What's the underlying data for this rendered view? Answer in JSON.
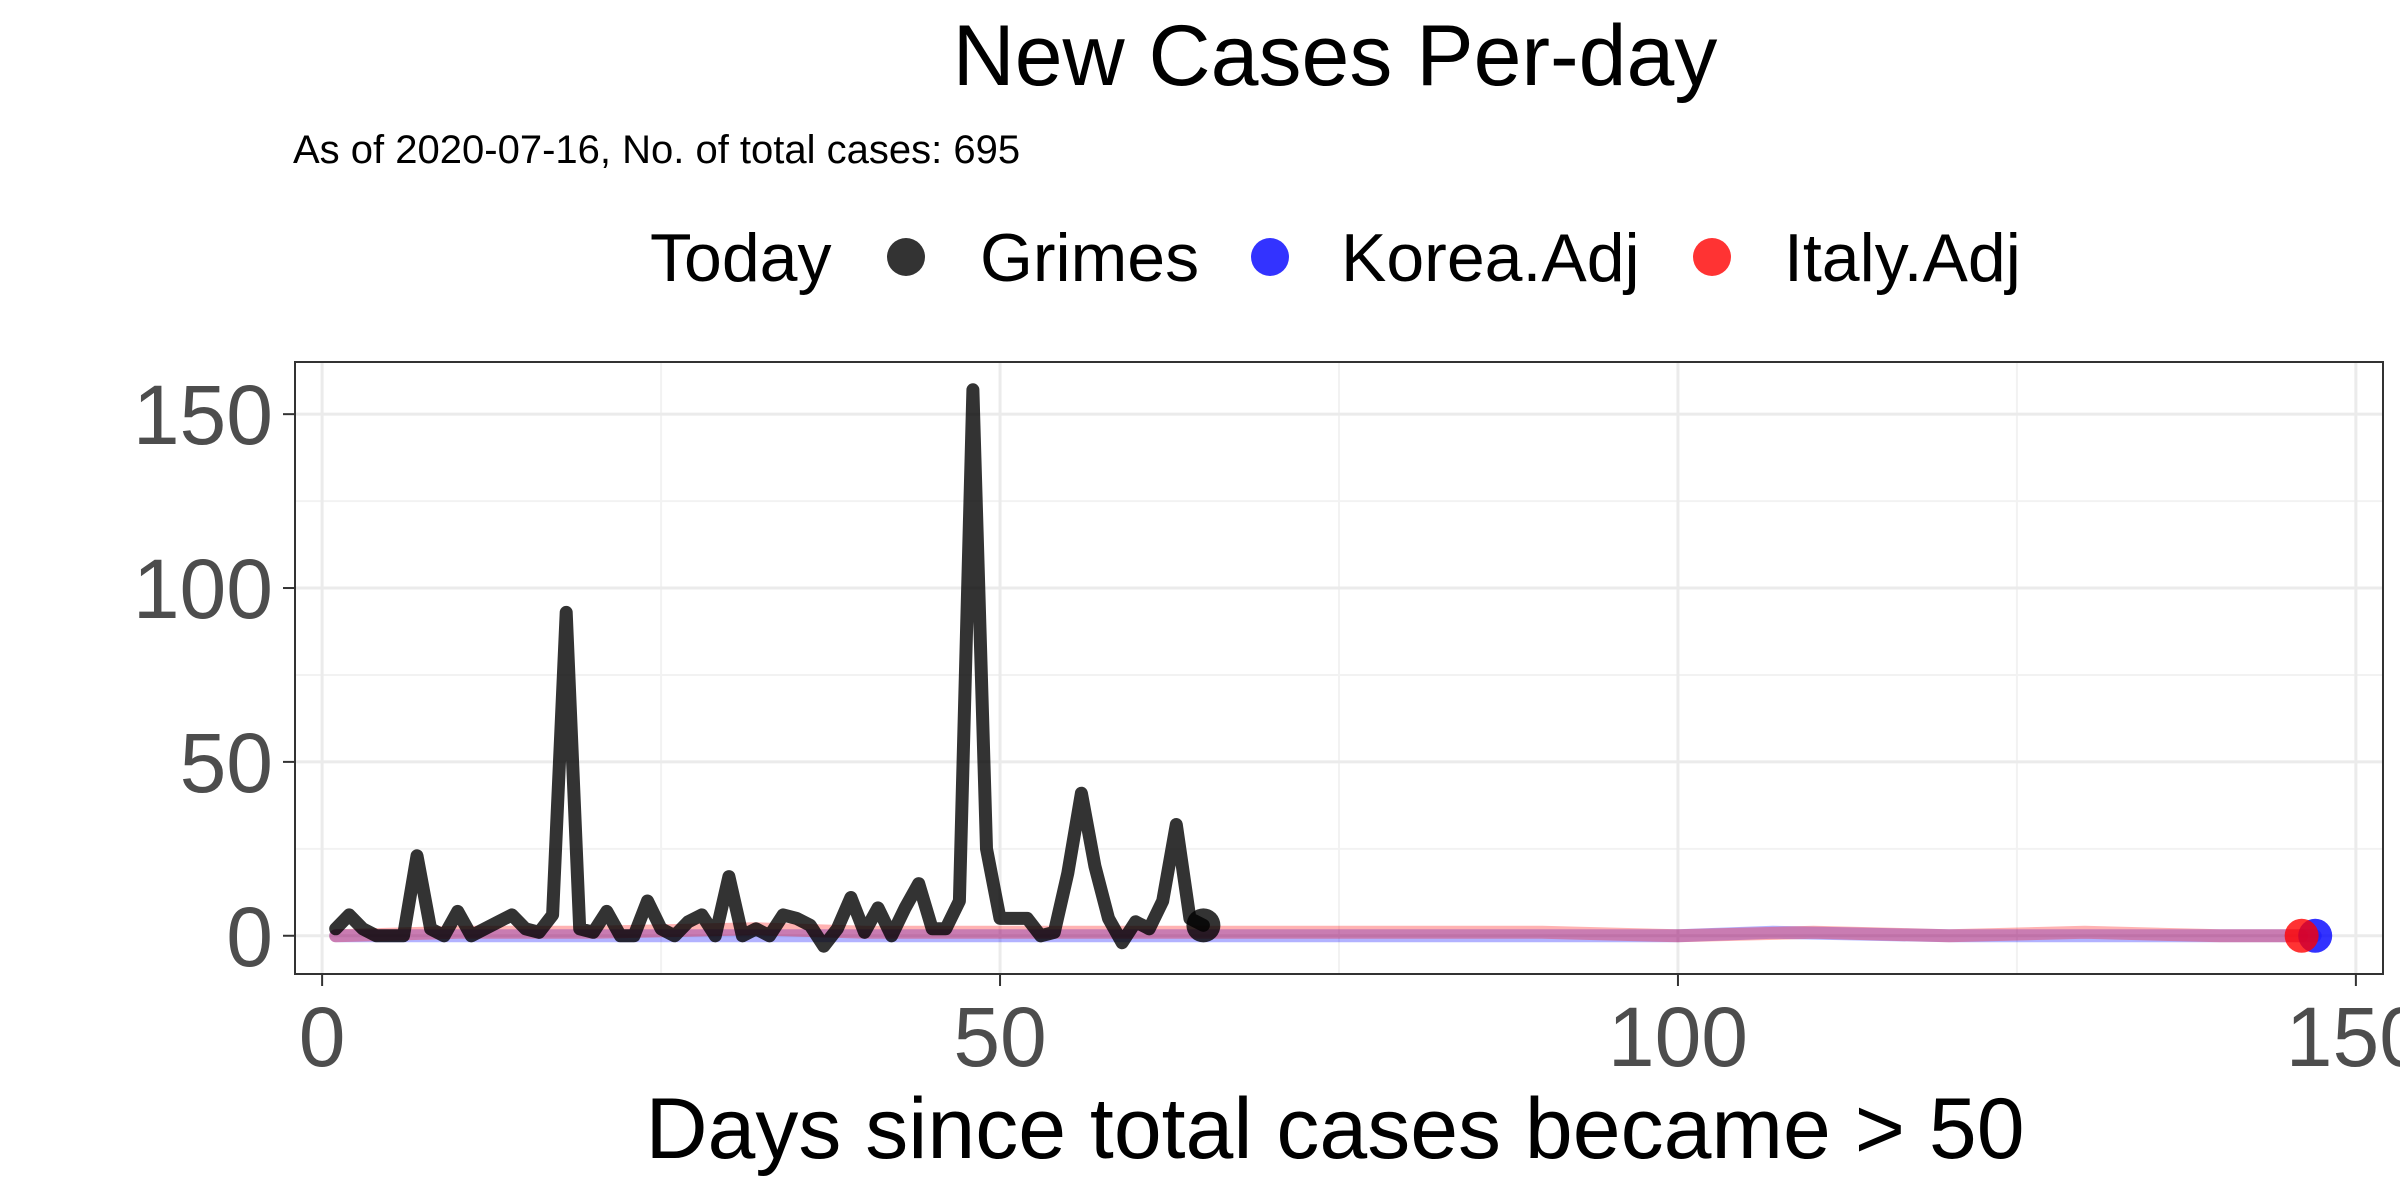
{
  "chart_data": {
    "type": "line",
    "title": "New Cases Per-day",
    "subtitle": "As of 2020-07-16, No. of total cases: 695",
    "legend": {
      "title": "Today",
      "position": "top"
    },
    "xlabel": "Days since total cases became > 50",
    "ylabel": "",
    "xlim": [
      -2,
      152
    ],
    "ylim": [
      -11,
      165
    ],
    "xticks": [
      0,
      50,
      100,
      150
    ],
    "yticks": [
      0,
      50,
      100,
      150
    ],
    "grid": true,
    "series": [
      {
        "name": "Grimes",
        "color": "#000000",
        "x": [
          1,
          2,
          3,
          4,
          5,
          6,
          7,
          8,
          9,
          10,
          11,
          12,
          13,
          14,
          15,
          16,
          17,
          18,
          19,
          20,
          21,
          22,
          23,
          24,
          25,
          26,
          27,
          28,
          29,
          30,
          31,
          32,
          33,
          34,
          35,
          36,
          37,
          38,
          39,
          40,
          41,
          42,
          43,
          44,
          45,
          46,
          47,
          48,
          49,
          50,
          51,
          52,
          53,
          54,
          55,
          56,
          57,
          58,
          59,
          60,
          61,
          62,
          63,
          64,
          65
        ],
        "values": [
          2,
          6,
          2,
          0,
          0,
          0,
          23,
          2,
          0,
          7,
          0,
          2,
          4,
          6,
          2,
          1,
          6,
          93,
          2,
          1,
          7,
          0,
          0,
          10,
          2,
          0,
          4,
          6,
          0,
          17,
          0,
          2,
          0,
          6,
          5,
          3,
          -3,
          2,
          11,
          1,
          8,
          0,
          8,
          15,
          2,
          2,
          10,
          157,
          25,
          5,
          5,
          5,
          0,
          1,
          18,
          41,
          20,
          5,
          -2,
          4,
          2,
          10,
          32,
          5,
          3
        ]
      },
      {
        "name": "Korea.Adj",
        "color": "#0000ff",
        "x": [
          1,
          20,
          40,
          60,
          80,
          100,
          107,
          120,
          140,
          147
        ],
        "values": [
          0,
          0,
          0,
          0,
          0,
          0,
          1,
          0,
          0,
          0
        ]
      },
      {
        "name": "Italy.Adj",
        "color": "#ff0000",
        "x": [
          1,
          10,
          20,
          32,
          40,
          50,
          60,
          70,
          80,
          90,
          100,
          110,
          120,
          130,
          140,
          146
        ],
        "values": [
          0,
          1,
          1,
          2,
          1,
          1,
          1,
          1,
          1,
          1,
          0,
          1,
          0,
          1,
          0,
          0
        ]
      }
    ]
  }
}
